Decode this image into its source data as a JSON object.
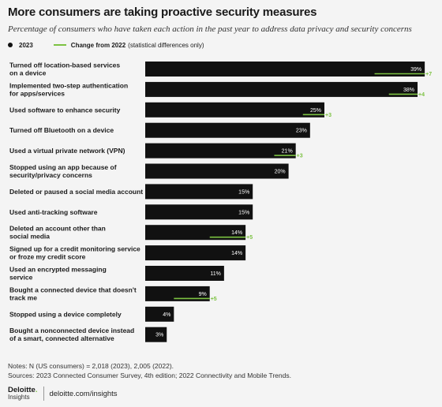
{
  "title": "More consumers are taking proactive security measures",
  "subtitle": "Percentage of consumers who have taken each action in the past year to address data privacy and security concerns",
  "legend": {
    "series_2023": "2023",
    "change_label": "Change from 2022",
    "change_note": "(statistical differences only)"
  },
  "notes": {
    "line1": "Notes: N (US consumers) = 2,018 (2023), 2,005 (2022).",
    "line2": "Sources: 2023 Connected Consumer Survey, 4th edition; 2022 Connectivity and Mobile Trends."
  },
  "footer": {
    "logo_main": "Deloitte",
    "logo_dot": ".",
    "logo_sub": "Insights",
    "url": "deloitte.com/insights"
  },
  "colors": {
    "bar": "#111111",
    "change": "#7cc242"
  },
  "chart_data": {
    "type": "bar",
    "orientation": "horizontal",
    "x_unit": "%",
    "xlim": [
      0,
      40
    ],
    "legend_position": "top-left",
    "grid": false,
    "series": [
      {
        "name": "2023",
        "values": [
          39,
          38,
          25,
          23,
          21,
          20,
          15,
          15,
          14,
          14,
          11,
          9,
          4,
          3
        ]
      },
      {
        "name": "Change from 2022",
        "values": [
          7,
          4,
          3,
          null,
          3,
          null,
          null,
          null,
          5,
          null,
          null,
          5,
          null,
          null
        ]
      }
    ],
    "categories": [
      [
        "Turned off location-based services",
        "on a device"
      ],
      [
        "Implemented two-step authentication",
        "for apps/services"
      ],
      [
        "Used software to enhance security"
      ],
      [
        "Turned off Bluetooth on a device"
      ],
      [
        "Used a virtual private network (VPN)"
      ],
      [
        "Stopped using an app because of",
        "security/privacy concerns"
      ],
      [
        "Deleted or paused a social media account"
      ],
      [
        "Used anti-tracking software"
      ],
      [
        "Deleted an account other than",
        "social media"
      ],
      [
        "Signed up for a credit monitoring service",
        "or froze my credit score"
      ],
      [
        "Used an encrypted messaging",
        "service"
      ],
      [
        "Bought a connected device that doesn't",
        "track me"
      ],
      [
        "Stopped using a device completely"
      ],
      [
        "Bought a nonconnected device instead",
        "of a smart, connected alternative"
      ]
    ],
    "value_labels": [
      "39%",
      "38%",
      "25%",
      "23%",
      "21%",
      "20%",
      "15%",
      "15%",
      "14%",
      "14%",
      "11%",
      "9%",
      "4%",
      "3%"
    ],
    "change_labels": [
      "+7",
      "+4",
      "+3",
      "",
      "+3",
      "",
      "",
      "",
      "+5",
      "",
      "",
      "+5",
      "",
      ""
    ]
  }
}
